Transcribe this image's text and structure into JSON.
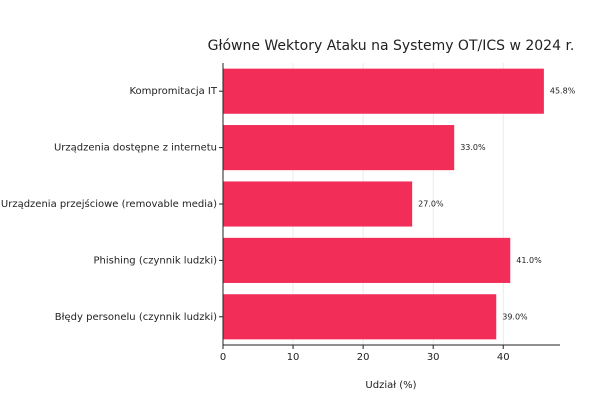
{
  "chart_data": {
    "type": "barh",
    "title": "Główne Wektory Ataku na Systemy OT/ICS w 2024 r.",
    "xlabel": "Udział (%)",
    "categories": [
      "Kompromitacja IT",
      "Urządzenia dostępne z internetu",
      "Urządzenia przejściowe (removable media)",
      "Phishing (czynnik ludzki)",
      "Błędy personelu (czynnik ludzki)"
    ],
    "values": [
      45.8,
      33.0,
      27.0,
      41.0,
      39.0
    ],
    "value_labels": [
      "45.8%",
      "33.0%",
      "27.0%",
      "41.0%",
      "39.0%"
    ],
    "color": "#f22d58",
    "xlim": [
      0,
      48.1
    ],
    "xticks": [
      0,
      10,
      20,
      30,
      40
    ],
    "grid": true
  }
}
